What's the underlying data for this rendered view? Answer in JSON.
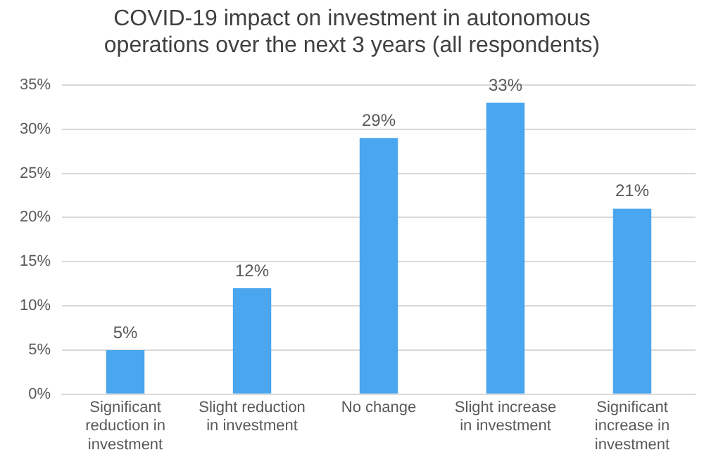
{
  "chart_data": {
    "type": "bar",
    "title": "COVID-19 impact on investment in autonomous operations over the next 3 years (all respondents)",
    "categories": [
      "Significant reduction in investment",
      "Slight reduction in investment",
      "No change",
      "Slight increase in investment",
      "Significant increase in investment"
    ],
    "values": [
      5,
      12,
      29,
      33,
      21
    ],
    "value_labels": [
      "5%",
      "12%",
      "29%",
      "33%",
      "21%"
    ],
    "color": "#4aa6ee",
    "ylim": [
      0,
      35
    ],
    "yticks": [
      {
        "value": 0,
        "label": "0%"
      },
      {
        "value": 5,
        "label": "5%"
      },
      {
        "value": 10,
        "label": "10%"
      },
      {
        "value": 15,
        "label": "15%"
      },
      {
        "value": 20,
        "label": "20%"
      },
      {
        "value": 25,
        "label": "25%"
      },
      {
        "value": 30,
        "label": "30%"
      },
      {
        "value": 35,
        "label": "35%"
      }
    ],
    "grid": "y",
    "legend": false
  }
}
